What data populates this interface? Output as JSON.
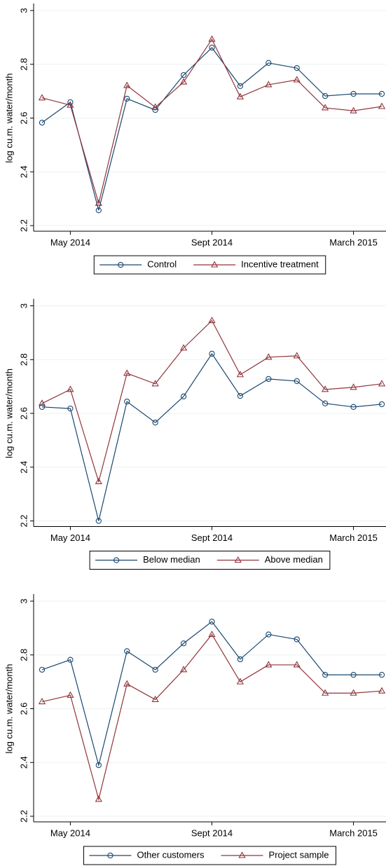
{
  "chart_data": [
    {
      "type": "line",
      "y_label": "log cu.m. water/month",
      "categories": [
        null,
        "May 2014",
        null,
        null,
        null,
        null,
        "Sept 2014",
        null,
        null,
        null,
        null,
        "March 2015",
        null
      ],
      "ylim": [
        2.2,
        3
      ],
      "yticks": [
        2.2,
        2.4,
        2.6,
        2.8,
        3
      ],
      "series": [
        {
          "name": "Control",
          "color": "#1a476f",
          "marker": "circle",
          "values": [
            2.583,
            2.659,
            2.257,
            2.672,
            2.63,
            2.76,
            2.862,
            2.719,
            2.805,
            2.786,
            2.682,
            2.69,
            2.69
          ]
        },
        {
          "name": "Incentive treatment",
          "color": "#90353b",
          "marker": "triangle",
          "values": [
            2.675,
            2.648,
            2.283,
            2.721,
            2.64,
            2.734,
            2.893,
            2.679,
            2.724,
            2.742,
            2.638,
            2.627,
            2.643
          ]
        }
      ]
    },
    {
      "type": "line",
      "y_label": "log cu.m. water/month",
      "categories": [
        null,
        "May 2014",
        null,
        null,
        null,
        null,
        "Sept 2014",
        null,
        null,
        null,
        null,
        "March 2015",
        null
      ],
      "ylim": [
        2.2,
        3
      ],
      "yticks": [
        2.2,
        2.4,
        2.6,
        2.8,
        3
      ],
      "series": [
        {
          "name": "Below median",
          "color": "#1a476f",
          "marker": "circle",
          "values": [
            2.624,
            2.618,
            2.2,
            2.644,
            2.566,
            2.663,
            2.822,
            2.665,
            2.728,
            2.72,
            2.637,
            2.624,
            2.634
          ]
        },
        {
          "name": "Above median",
          "color": "#90353b",
          "marker": "triangle",
          "values": [
            2.637,
            2.689,
            2.346,
            2.749,
            2.71,
            2.843,
            2.945,
            2.744,
            2.809,
            2.814,
            2.689,
            2.697,
            2.71
          ]
        }
      ]
    },
    {
      "type": "line",
      "y_label": "log cu.m. water/month",
      "categories": [
        null,
        "May 2014",
        null,
        null,
        null,
        null,
        "Sept 2014",
        null,
        null,
        null,
        null,
        "March 2015",
        null
      ],
      "ylim": [
        2.2,
        3
      ],
      "yticks": [
        2.2,
        2.4,
        2.6,
        2.8,
        3
      ],
      "series": [
        {
          "name": "Other customers",
          "color": "#1a476f",
          "marker": "circle",
          "values": [
            2.745,
            2.782,
            2.39,
            2.814,
            2.745,
            2.843,
            2.924,
            2.784,
            2.876,
            2.858,
            2.726,
            2.726,
            2.726
          ]
        },
        {
          "name": "Project sample",
          "color": "#90353b",
          "marker": "triangle",
          "values": [
            2.626,
            2.65,
            2.263,
            2.692,
            2.634,
            2.745,
            2.876,
            2.7,
            2.763,
            2.763,
            2.658,
            2.658,
            2.666
          ]
        }
      ]
    }
  ]
}
